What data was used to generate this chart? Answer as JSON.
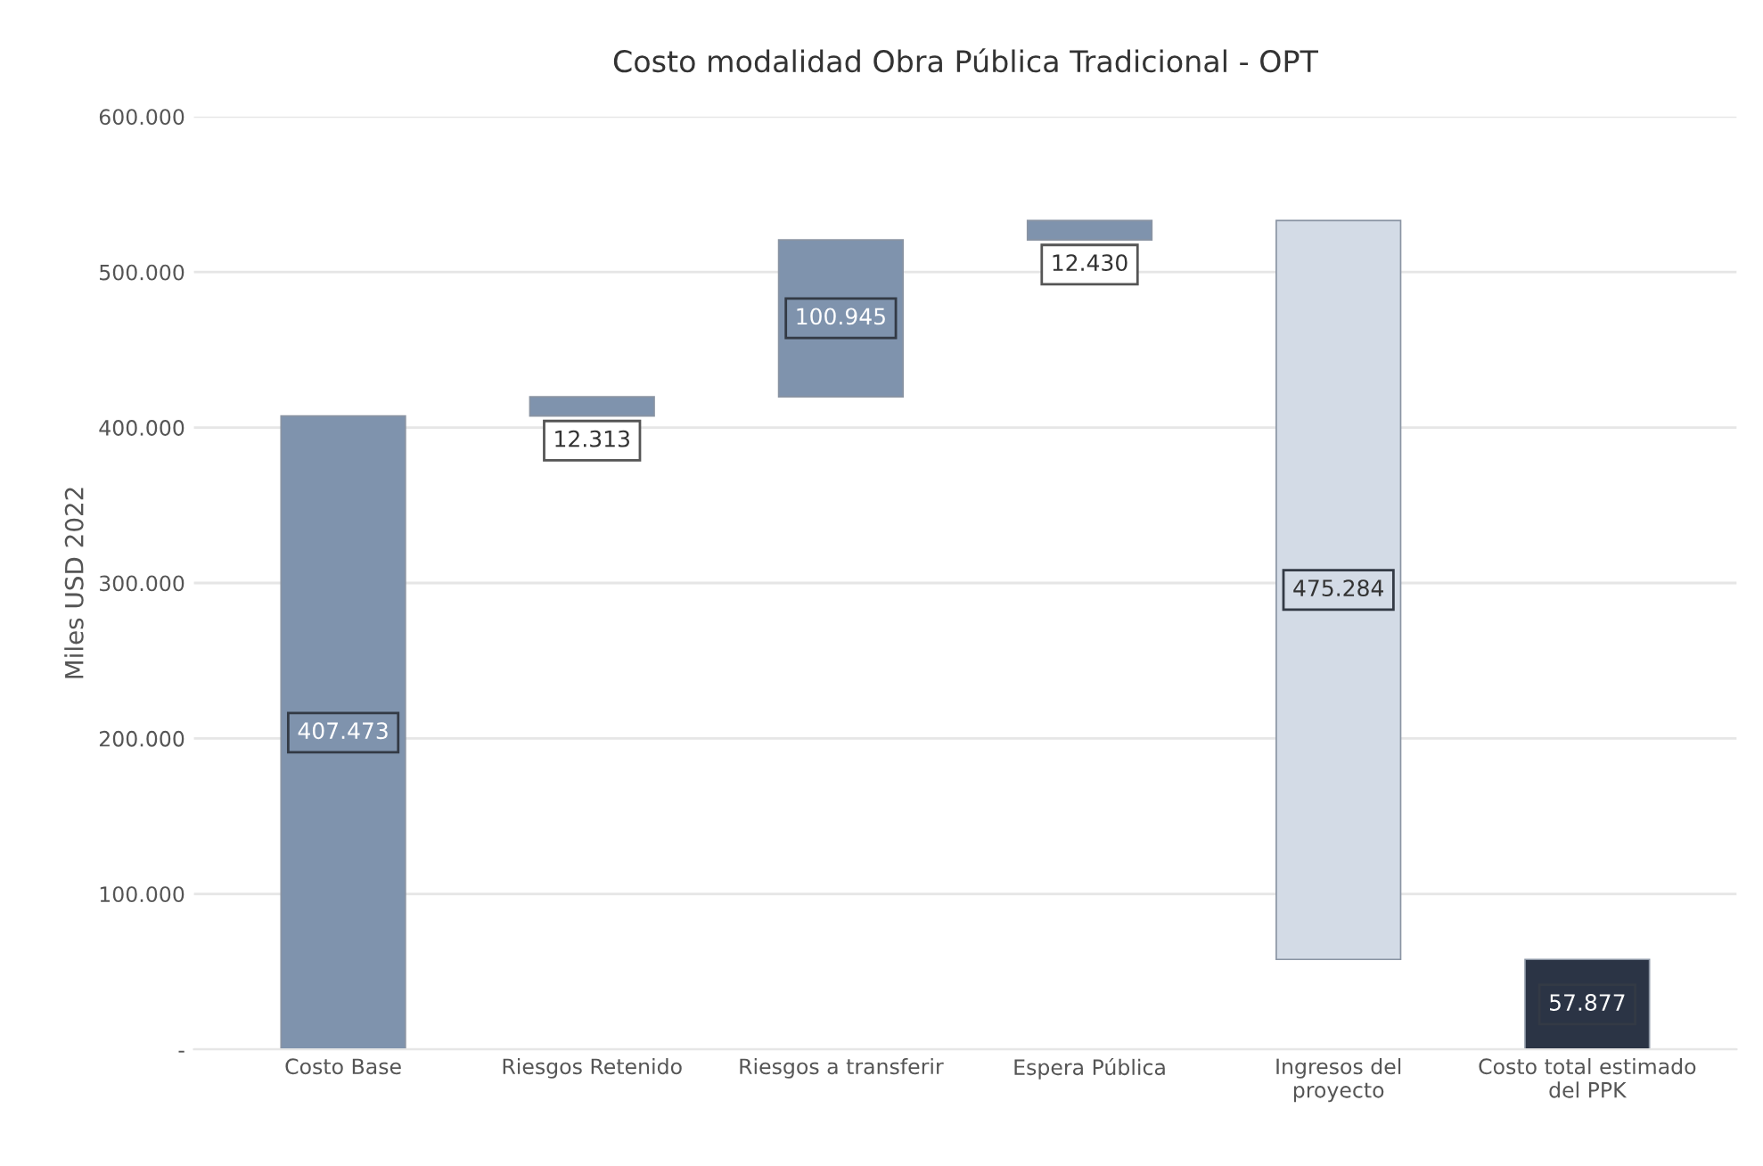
{
  "chart_data": {
    "type": "bar",
    "title": "Costo modalidad Obra Pública Tradicional - OPT",
    "ylabel": "Miles USD 2022",
    "categories": [
      "Costo Base",
      "Riesgos Retenido",
      "Riesgos a transferir",
      "Espera Pública",
      "Ingresos del proyecto",
      "Costo total estimado del PPK"
    ],
    "values": [
      407473,
      12313,
      100945,
      12430,
      -475284,
      57877
    ],
    "base": [
      0,
      407473,
      419786,
      520731,
      533161,
      0
    ],
    "colors": [
      "#7f93ad",
      "#7f93ad",
      "#7f93ad",
      "#7f93ad",
      "#d3dbe6",
      "#2b3445"
    ],
    "value_labels": [
      "407.473",
      "12.313",
      "100.945",
      "12.430",
      "475.284",
      "57.877"
    ],
    "ylim": [
      0,
      600000
    ],
    "yticks": [
      {
        "value": 0,
        "label": "-"
      },
      {
        "value": 100000,
        "label": "100.000"
      },
      {
        "value": 200000,
        "label": "200.000"
      },
      {
        "value": 300000,
        "label": "300.000"
      },
      {
        "value": 400000,
        "label": "400.000"
      },
      {
        "value": 500000,
        "label": "500.000"
      },
      {
        "value": 600000,
        "label": "600.000"
      }
    ],
    "grid": "y"
  }
}
